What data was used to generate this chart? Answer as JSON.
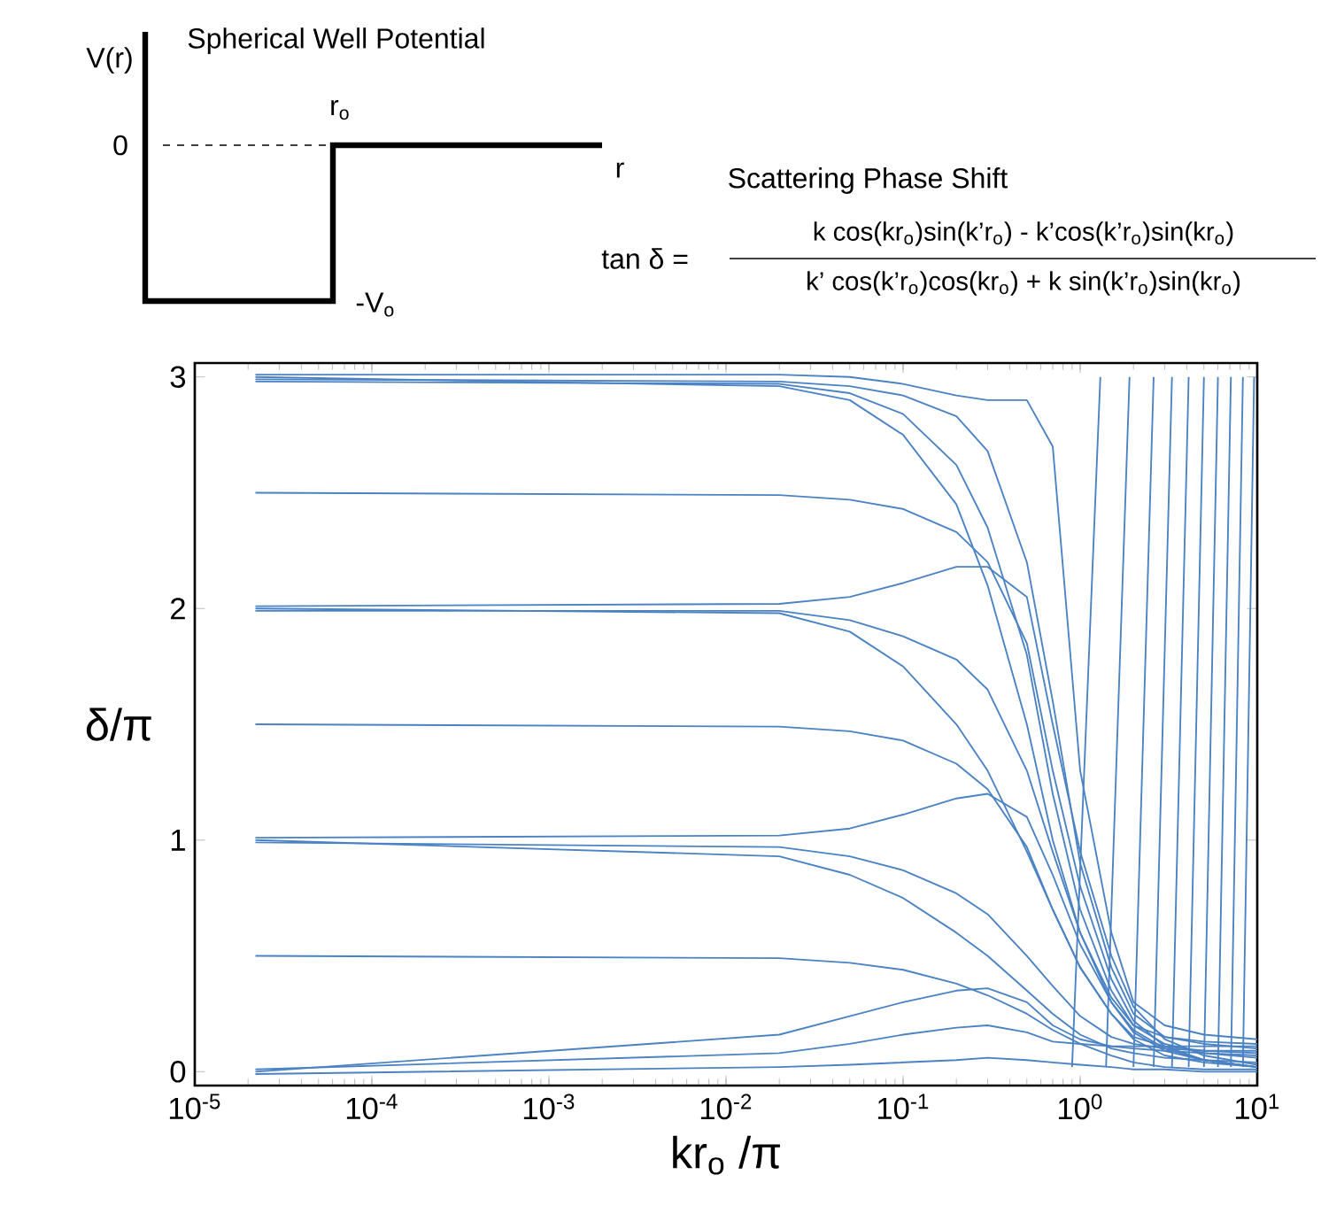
{
  "chart_data": {
    "type": "line",
    "xlabel": "kr$_{o}$ /π",
    "ylabel": "δ/π",
    "log": "x",
    "xlim": [
      1e-05,
      10
    ],
    "ylim": [
      -0.06,
      3.06
    ],
    "xticks": [
      {
        "value": 1e-05,
        "label": "10$^{-5}$"
      },
      {
        "value": 0.0001,
        "label": "10$^{-4}$"
      },
      {
        "value": 0.001,
        "label": "10$^{-3}$"
      },
      {
        "value": 0.01,
        "label": "10$^{-2}$"
      },
      {
        "value": 0.1,
        "label": "10$^{-1}$"
      },
      {
        "value": 1,
        "label": "10$^{0}$"
      },
      {
        "value": 10,
        "label": "10$^{1}$"
      }
    ],
    "yticks": [
      0,
      1,
      2,
      3
    ],
    "marker": "none",
    "line_style": "solid",
    "annotations": [
      "Spherical Well Potential",
      "V(r)",
      "0",
      "r$_{o}$",
      "r",
      "-V$_{o}$",
      "Scattering Phase Shift",
      "tan δ =",
      "k cos(kr$_{o}$)sin(k’r$_{o}$) - k’cos(k’r$_{o}$)sin(kr$_{o}$)",
      "k’ cos(k’r$_{o}$)cos(kr$_{o}$) + k sin(k’r$_{o}$)sin(kr$_{o}$)"
    ],
    "x": [
      2.2e-05,
      0.02,
      0.05,
      0.1,
      0.2,
      0.3,
      0.5,
      0.7,
      1,
      1.5,
      2,
      3,
      5,
      10
    ],
    "series": [
      {
        "color": "#4a82c4",
        "values": [
          3.0,
          2.96,
          2.9,
          2.75,
          2.45,
          2.1,
          1.5,
          1.0,
          0.6,
          0.3,
          0.18,
          0.1,
          0.05,
          0.02
        ]
      },
      {
        "color": "#4a82c4",
        "values": [
          2.98,
          2.97,
          2.93,
          2.84,
          2.62,
          2.35,
          1.8,
          1.2,
          0.7,
          0.35,
          0.2,
          0.12,
          0.08,
          0.06
        ]
      },
      {
        "color": "#4a82c4",
        "values": [
          2.99,
          2.98,
          2.96,
          2.92,
          2.83,
          2.68,
          2.2,
          1.6,
          0.9,
          0.45,
          0.25,
          0.15,
          0.12,
          0.1
        ]
      },
      {
        "color": "#4a82c4",
        "values": [
          3.01,
          3.01,
          3.0,
          2.97,
          2.92,
          2.9,
          2.9,
          2.7,
          1.3,
          0.6,
          0.3,
          0.2,
          0.16,
          0.14
        ]
      },
      {
        "color": "#4a82c4",
        "values": [
          2.5,
          2.49,
          2.47,
          2.43,
          2.33,
          2.2,
          1.85,
          1.3,
          0.8,
          0.4,
          0.22,
          0.11,
          0.05,
          0.02
        ]
      },
      {
        "color": "#4a82c4",
        "values": [
          2.01,
          2.02,
          2.05,
          2.11,
          2.18,
          2.18,
          2.05,
          1.5,
          0.95,
          0.5,
          0.28,
          0.14,
          0.07,
          0.03
        ]
      },
      {
        "color": "#4a82c4",
        "values": [
          2.0,
          1.98,
          1.9,
          1.75,
          1.5,
          1.3,
          0.95,
          0.7,
          0.45,
          0.25,
          0.15,
          0.11,
          0.09,
          0.08
        ]
      },
      {
        "color": "#4a82c4",
        "values": [
          1.99,
          1.99,
          1.95,
          1.88,
          1.78,
          1.65,
          1.3,
          0.95,
          0.6,
          0.32,
          0.2,
          0.15,
          0.13,
          0.12
        ]
      },
      {
        "color": "#4a82c4",
        "values": [
          1.5,
          1.49,
          1.47,
          1.43,
          1.33,
          1.22,
          0.97,
          0.7,
          0.45,
          0.25,
          0.14,
          0.07,
          0.04,
          0.02
        ]
      },
      {
        "color": "#4a82c4",
        "values": [
          1.01,
          1.02,
          1.05,
          1.11,
          1.18,
          1.2,
          1.1,
          0.85,
          0.55,
          0.3,
          0.17,
          0.09,
          0.05,
          0.02
        ]
      },
      {
        "color": "#4a82c4",
        "values": [
          1.0,
          0.93,
          0.85,
          0.75,
          0.6,
          0.5,
          0.35,
          0.25,
          0.16,
          0.1,
          0.08,
          0.06,
          0.05,
          0.04
        ]
      },
      {
        "color": "#4a82c4",
        "values": [
          0.99,
          0.97,
          0.93,
          0.87,
          0.77,
          0.68,
          0.5,
          0.37,
          0.24,
          0.15,
          0.12,
          0.1,
          0.09,
          0.09
        ]
      },
      {
        "color": "#4a82c4",
        "values": [
          0.5,
          0.49,
          0.47,
          0.44,
          0.38,
          0.33,
          0.25,
          0.18,
          0.12,
          0.07,
          0.04,
          0.02,
          0.01,
          0.01
        ]
      },
      {
        "color": "#4a82c4",
        "values": [
          0.0,
          0.16,
          0.24,
          0.3,
          0.35,
          0.36,
          0.3,
          0.2,
          0.14,
          0.11,
          0.1,
          0.09,
          0.08,
          0.07
        ]
      },
      {
        "color": "#4a82c4",
        "values": [
          0.01,
          0.08,
          0.12,
          0.16,
          0.19,
          0.2,
          0.17,
          0.13,
          0.12,
          0.11,
          0.11,
          0.11,
          0.11,
          0.11
        ]
      },
      {
        "color": "#4a82c4",
        "values": [
          -0.01,
          0.02,
          0.03,
          0.04,
          0.05,
          0.06,
          0.05,
          0.04,
          0.03,
          0.02,
          0.01,
          0.01,
          0.0,
          0.0
        ]
      },
      {
        "color": "#4a82c4",
        "x": [
          0.9,
          1.3
        ],
        "values": [
          0.02,
          3.0
        ]
      },
      {
        "color": "#4a82c4",
        "x": [
          1.4,
          1.9
        ],
        "values": [
          0.02,
          3.0
        ]
      },
      {
        "color": "#4a82c4",
        "x": [
          2.0,
          2.6
        ],
        "values": [
          0.02,
          3.0
        ]
      },
      {
        "color": "#4a82c4",
        "x": [
          2.6,
          3.3
        ],
        "values": [
          0.02,
          3.0
        ]
      },
      {
        "color": "#4a82c4",
        "x": [
          3.3,
          4.1
        ],
        "values": [
          0.02,
          3.0
        ]
      },
      {
        "color": "#4a82c4",
        "x": [
          4.1,
          5.0
        ],
        "values": [
          0.02,
          3.0
        ]
      },
      {
        "color": "#4a82c4",
        "x": [
          5.0,
          6.0
        ],
        "values": [
          0.02,
          3.0
        ]
      },
      {
        "color": "#4a82c4",
        "x": [
          6.0,
          7.1
        ],
        "values": [
          0.02,
          3.0
        ]
      },
      {
        "color": "#4a82c4",
        "x": [
          7.1,
          8.3
        ],
        "values": [
          0.02,
          3.0
        ]
      },
      {
        "color": "#4a82c4",
        "x": [
          8.3,
          9.6
        ],
        "values": [
          0.02,
          3.0
        ]
      }
    ]
  }
}
